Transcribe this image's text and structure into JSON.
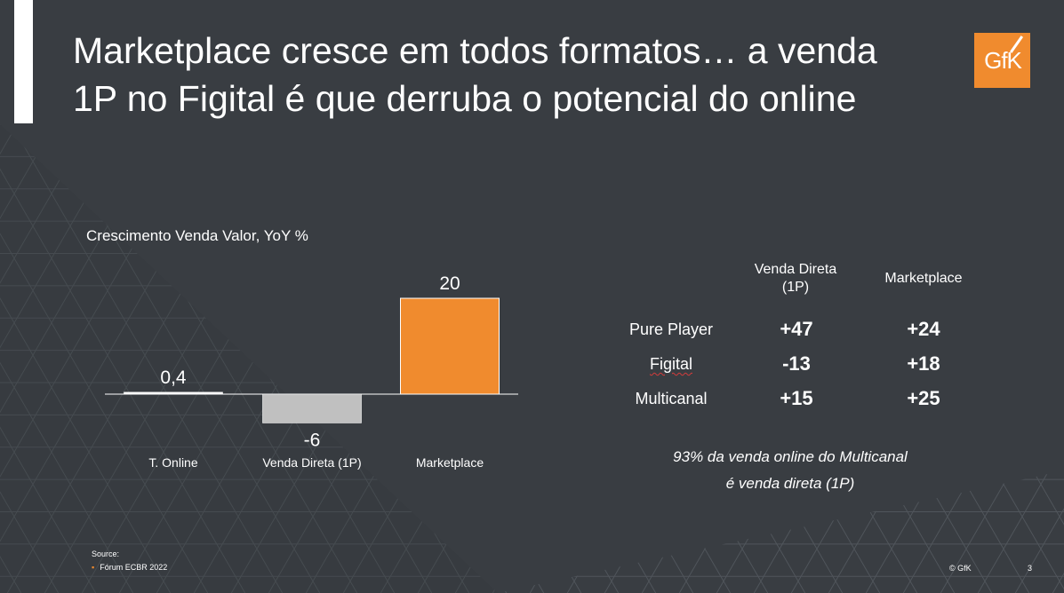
{
  "slide": {
    "title_lines": [
      "Marketplace cresce em todos formatos… a venda",
      "1P no Figital é que derruba o potencial do online"
    ],
    "logo_text": "GfK",
    "page_number": "3",
    "copyright": "© GfK",
    "source_label": "Source:",
    "source_item": "Fórum ECBR 2022"
  },
  "chart_data": {
    "type": "bar",
    "title": "Crescimento Venda Valor, YoY %",
    "categories": [
      "T. Online",
      "Venda Direta (1P)",
      "Marketplace"
    ],
    "values": [
      0.4,
      -6,
      20
    ],
    "value_labels": [
      "0,4",
      "-6",
      "20"
    ],
    "colors": [
      "#ffffff",
      "#c0c0c0",
      "#f08b2e"
    ],
    "xlabel": "",
    "ylabel": "",
    "ylim": [
      -6,
      20
    ],
    "grid": false
  },
  "table": {
    "headers": [
      "Venda Direta (1P)",
      "Marketplace"
    ],
    "header_lines": [
      [
        "Venda Direta",
        "(1P)"
      ],
      [
        "Marketplace"
      ]
    ],
    "rows": [
      {
        "label": "Pure Player",
        "values": [
          "+47",
          "+24"
        ]
      },
      {
        "label": "Figital",
        "values": [
          "-13",
          "+18"
        ]
      },
      {
        "label": "Multicanal",
        "values": [
          "+15",
          "+25"
        ]
      }
    ]
  },
  "note_lines": [
    "93% da venda online do Multicanal",
    "é venda direta (1P)"
  ],
  "colors": {
    "background": "#393d42",
    "accent": "#f08b2e",
    "bar_negative": "#c0c0c0",
    "text": "#ffffff"
  }
}
